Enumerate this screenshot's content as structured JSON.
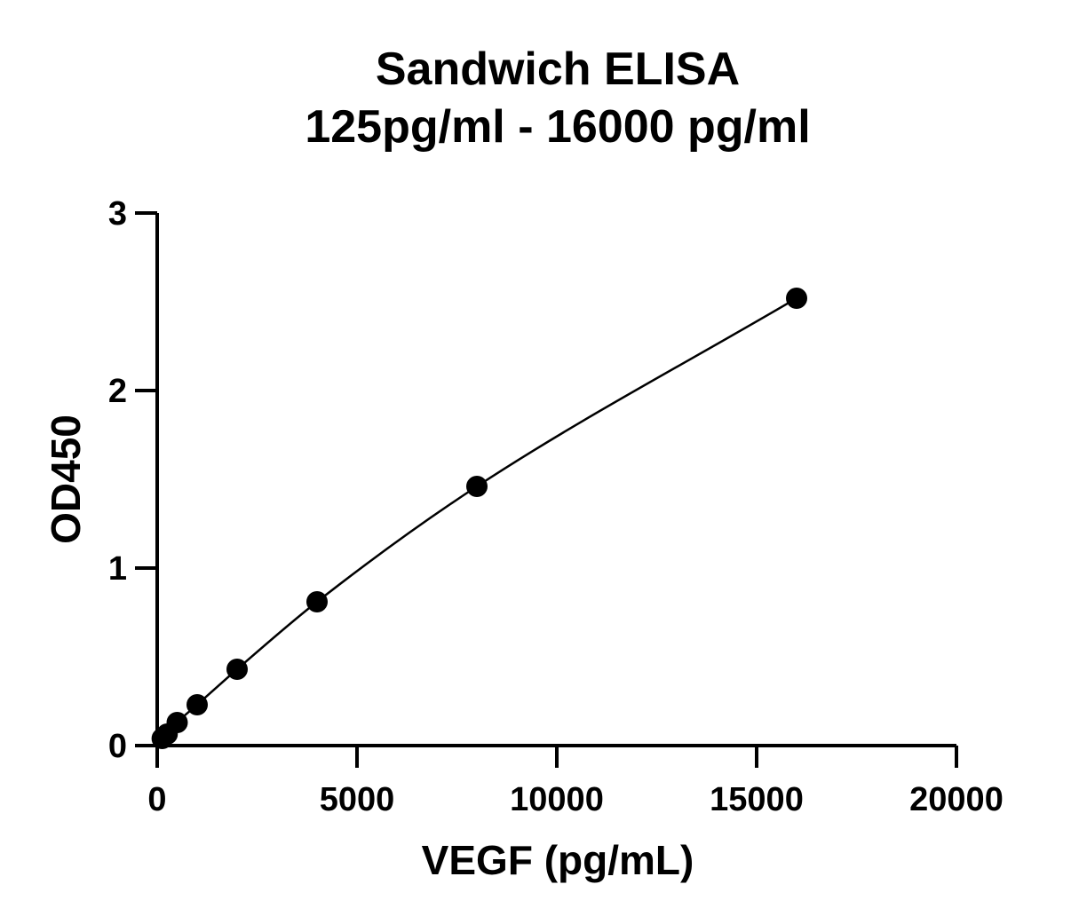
{
  "chart_data": {
    "type": "scatter",
    "title_lines": [
      "Sandwich ELISA",
      "125pg/ml - 16000 pg/ml"
    ],
    "xlabel": "VEGF (pg/mL)",
    "ylabel": "OD450",
    "xlim": [
      0,
      20000
    ],
    "ylim": [
      0,
      3
    ],
    "x_ticks": [
      0,
      5000,
      10000,
      15000,
      20000
    ],
    "y_ticks": [
      0,
      1,
      2,
      3
    ],
    "x_tick_labels": [
      "0",
      "5000",
      "10000",
      "15000",
      "20000"
    ],
    "y_tick_labels": [
      "0",
      "1",
      "2",
      "3"
    ],
    "grid": false,
    "legend": "none",
    "series": [
      {
        "x": [
          125,
          250,
          500,
          1000,
          2000,
          4000,
          8000,
          16000
        ],
        "y": [
          0.04,
          0.065,
          0.13,
          0.23,
          0.43,
          0.81,
          1.46,
          2.52
        ],
        "marker": "circle",
        "color": "#000000",
        "fit_curve": true
      }
    ]
  }
}
